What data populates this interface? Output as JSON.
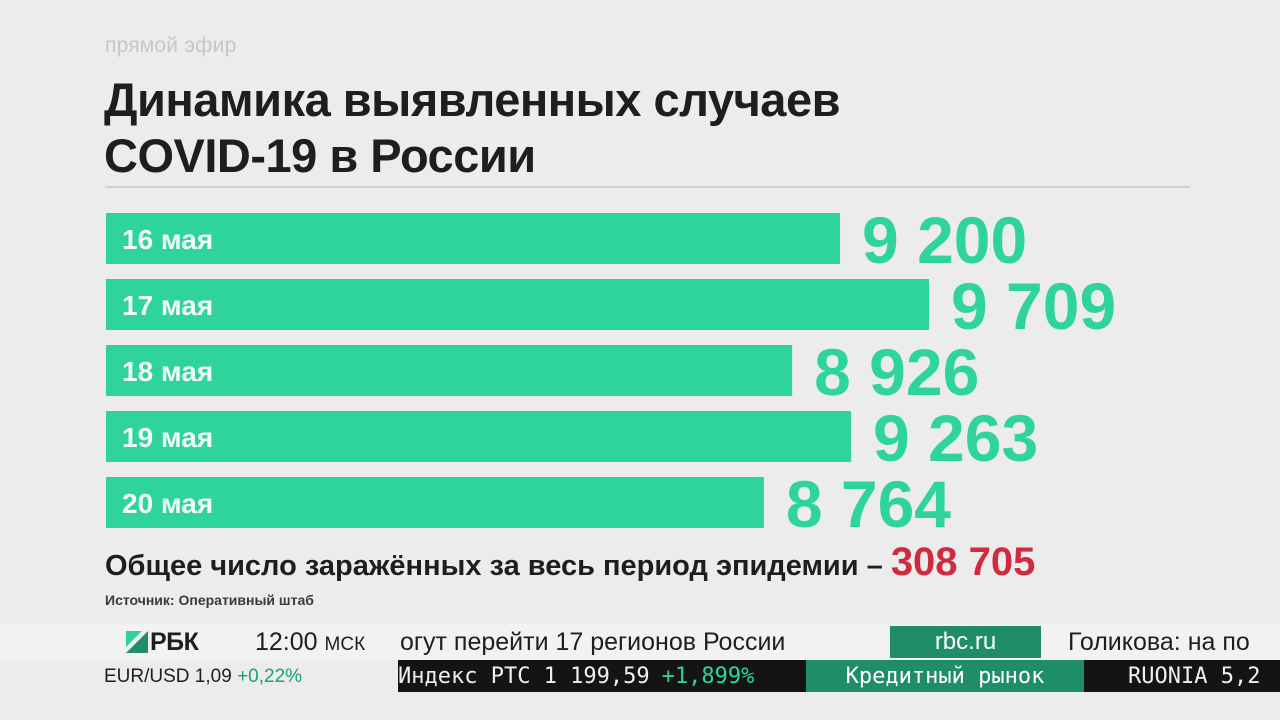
{
  "live_label": "прямой эфир",
  "chart_data": {
    "type": "bar",
    "orientation": "horizontal",
    "title_lines": [
      "Динамика выявленных случаев",
      "COVID-19 в России"
    ],
    "categories": [
      "16 мая",
      "17 мая",
      "18 мая",
      "19 мая",
      "20 мая"
    ],
    "values": [
      9200,
      9709,
      8926,
      9263,
      8764
    ],
    "value_labels": [
      "9 200",
      "9 709",
      "8 926",
      "9 263",
      "8 764"
    ],
    "xlim": [
      5000,
      9709
    ],
    "bar_color": "#2fd49a",
    "value_color": "#2fd49a",
    "legend": "none",
    "grid": false
  },
  "total": {
    "label": "Общее число заражённых за весь период эпидемии –",
    "value": "308 705"
  },
  "source": "Источник: Оперативный штаб",
  "ticker": {
    "logo": "РБК",
    "time": "12:00",
    "timezone": "МСК",
    "news_text": "огут перейти 17 регионов России",
    "site": "rbc.ru",
    "news_text_2": "Голикова: на по",
    "fx_label": "EUR/USD 1,09",
    "fx_change": "+0,22%",
    "rts_label": "Индекс РТС  1 199,59",
    "rts_change": "+1,899%",
    "credit_label": "Кредитный рынок",
    "ruonia_label": "RUONIA  5,2"
  },
  "colors": {
    "accent_green": "#2fd49a",
    "badge_green": "#1f8d67",
    "total_red": "#d02a3e",
    "background": "#ececec"
  }
}
